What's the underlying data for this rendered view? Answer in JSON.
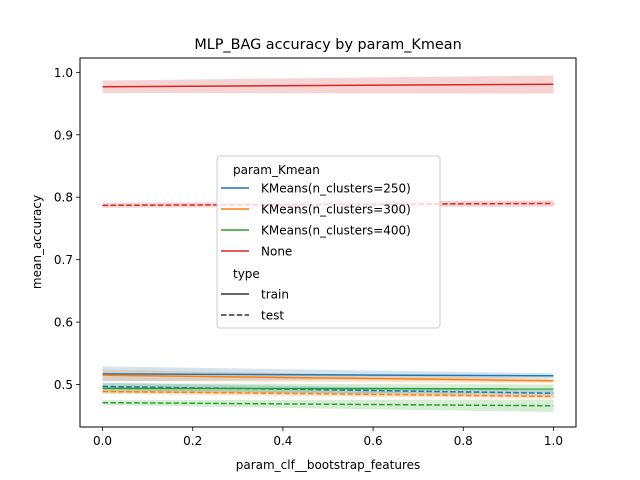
{
  "chart_data": {
    "type": "line",
    "title": "MLP_BAG accuracy by param_Kmean",
    "xlabel": "param_clf__bootstrap_features",
    "ylabel": "mean_accuracy",
    "xlim": [
      -0.05,
      1.05
    ],
    "ylim": [
      0.432,
      1.023
    ],
    "xticks": [
      0.0,
      0.2,
      0.4,
      0.6,
      0.8,
      1.0
    ],
    "xtick_labels": [
      "0.0",
      "0.2",
      "0.4",
      "0.6",
      "0.8",
      "1.0"
    ],
    "yticks": [
      0.5,
      0.6,
      0.7,
      0.8,
      0.9,
      1.0
    ],
    "ytick_labels": [
      "0.5",
      "0.6",
      "0.7",
      "0.8",
      "0.9",
      "1.0"
    ],
    "grid": false,
    "legend": {
      "placement": "center",
      "hue_title": "param_Kmean",
      "style_title": "type",
      "hue_entries": [
        {
          "label": "KMeans(n_clusters=250)",
          "color": "#1f77b4"
        },
        {
          "label": "KMeans(n_clusters=300)",
          "color": "#ff7f0e"
        },
        {
          "label": "KMeans(n_clusters=400)",
          "color": "#2ca02c"
        },
        {
          "label": "None",
          "color": "#d62728"
        }
      ],
      "style_entries": [
        {
          "label": "train",
          "dash": "solid"
        },
        {
          "label": "test",
          "dash": "dashed"
        }
      ]
    },
    "series": [
      {
        "name": "KMeans(n_clusters=250)",
        "type": "train",
        "color": "#1f77b4",
        "x": [
          0.0,
          1.0
        ],
        "y": [
          0.517,
          0.514
        ],
        "ci_low": [
          0.505,
          0.51
        ],
        "ci_high": [
          0.529,
          0.518
        ]
      },
      {
        "name": "KMeans(n_clusters=250)",
        "type": "test",
        "color": "#1f77b4",
        "x": [
          0.0,
          1.0
        ],
        "y": [
          0.497,
          0.486
        ],
        "ci_low": [
          0.491,
          0.481
        ],
        "ci_high": [
          0.503,
          0.491
        ]
      },
      {
        "name": "KMeans(n_clusters=300)",
        "type": "train",
        "color": "#ff7f0e",
        "x": [
          0.0,
          1.0
        ],
        "y": [
          0.515,
          0.506
        ],
        "ci_low": [
          0.506,
          0.502
        ],
        "ci_high": [
          0.524,
          0.51
        ]
      },
      {
        "name": "KMeans(n_clusters=300)",
        "type": "test",
        "color": "#ff7f0e",
        "x": [
          0.0,
          1.0
        ],
        "y": [
          0.489,
          0.481
        ],
        "ci_low": [
          0.485,
          0.477
        ],
        "ci_high": [
          0.493,
          0.485
        ]
      },
      {
        "name": "KMeans(n_clusters=400)",
        "type": "train",
        "color": "#2ca02c",
        "x": [
          0.0,
          1.0
        ],
        "y": [
          0.494,
          0.493
        ],
        "ci_low": [
          0.486,
          0.486
        ],
        "ci_high": [
          0.502,
          0.5
        ]
      },
      {
        "name": "KMeans(n_clusters=400)",
        "type": "test",
        "color": "#2ca02c",
        "x": [
          0.0,
          1.0
        ],
        "y": [
          0.471,
          0.466
        ],
        "ci_low": [
          0.467,
          0.456
        ],
        "ci_high": [
          0.475,
          0.476
        ]
      },
      {
        "name": "None",
        "type": "train",
        "color": "#d62728",
        "x": [
          0.0,
          1.0
        ],
        "y": [
          0.977,
          0.981
        ],
        "ci_low": [
          0.967,
          0.966
        ],
        "ci_high": [
          0.987,
          0.995
        ]
      },
      {
        "name": "None",
        "type": "test",
        "color": "#d62728",
        "x": [
          0.0,
          1.0
        ],
        "y": [
          0.787,
          0.79
        ],
        "ci_low": [
          0.783,
          0.785
        ],
        "ci_high": [
          0.791,
          0.795
        ]
      }
    ]
  }
}
